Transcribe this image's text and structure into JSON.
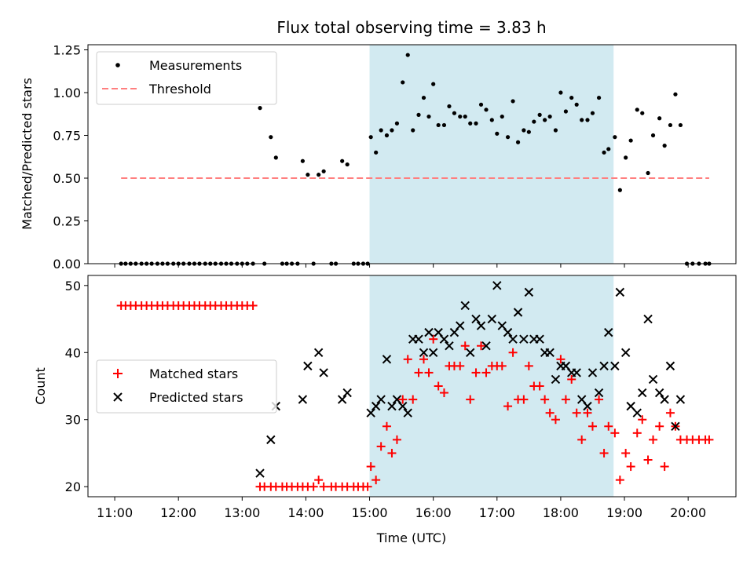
{
  "chart_data": {
    "type": "scatter",
    "title": "Flux total observing time = 3.83 h",
    "x_tick_labels": [
      "11:00",
      "12:00",
      "13:00",
      "14:00",
      "15:00",
      "16:00",
      "17:00",
      "18:00",
      "19:00",
      "20:00"
    ],
    "x_ticks_hours": [
      11,
      12,
      13,
      14,
      15,
      16,
      17,
      18,
      19,
      20
    ],
    "xlim_hours": [
      10.58,
      20.75
    ],
    "xlabel": "Time (UTC)",
    "shaded_region_hours": [
      15.0,
      18.83
    ],
    "shade_color": "#add8e6",
    "top": {
      "ylabel": "Matched/Predicted stars",
      "ylim": [
        0,
        1.28
      ],
      "y_ticks": [
        0.0,
        0.25,
        0.5,
        0.75,
        1.0,
        1.25
      ],
      "y_tick_labels": [
        "0.00",
        "0.25",
        "0.50",
        "0.75",
        "1.00",
        "1.25"
      ],
      "legend": [
        "Measurements",
        "Threshold"
      ],
      "threshold": {
        "value": 0.5,
        "x_start": 11.1,
        "x_end": 20.33,
        "color": "#ff7f7f"
      },
      "measurements": [
        [
          11.1,
          0
        ],
        [
          11.17,
          0
        ],
        [
          11.25,
          0
        ],
        [
          11.33,
          0
        ],
        [
          11.42,
          0
        ],
        [
          11.5,
          0
        ],
        [
          11.58,
          0
        ],
        [
          11.67,
          0
        ],
        [
          11.75,
          0
        ],
        [
          11.83,
          0
        ],
        [
          11.92,
          0
        ],
        [
          12.0,
          0
        ],
        [
          12.08,
          0
        ],
        [
          12.17,
          0
        ],
        [
          12.25,
          0
        ],
        [
          12.33,
          0
        ],
        [
          12.42,
          0
        ],
        [
          12.5,
          0
        ],
        [
          12.58,
          0
        ],
        [
          12.67,
          0
        ],
        [
          12.75,
          0
        ],
        [
          12.83,
          0
        ],
        [
          12.92,
          0
        ],
        [
          13.0,
          0
        ],
        [
          13.08,
          0
        ],
        [
          13.17,
          0
        ],
        [
          13.28,
          0.91
        ],
        [
          13.35,
          0
        ],
        [
          13.45,
          0.74
        ],
        [
          13.53,
          0.62
        ],
        [
          13.63,
          0
        ],
        [
          13.7,
          0
        ],
        [
          13.78,
          0
        ],
        [
          13.87,
          0
        ],
        [
          13.95,
          0.6
        ],
        [
          14.03,
          0.52
        ],
        [
          14.12,
          0
        ],
        [
          14.2,
          0.52
        ],
        [
          14.28,
          0.54
        ],
        [
          14.4,
          0
        ],
        [
          14.47,
          0
        ],
        [
          14.57,
          0.6
        ],
        [
          14.65,
          0.58
        ],
        [
          14.75,
          0
        ],
        [
          14.82,
          0
        ],
        [
          14.9,
          0
        ],
        [
          14.97,
          0
        ],
        [
          15.02,
          0.74
        ],
        [
          15.1,
          0.65
        ],
        [
          15.18,
          0.78
        ],
        [
          15.27,
          0.75
        ],
        [
          15.35,
          0.78
        ],
        [
          15.43,
          0.82
        ],
        [
          15.52,
          1.06
        ],
        [
          15.6,
          1.22
        ],
        [
          15.68,
          0.78
        ],
        [
          15.77,
          0.87
        ],
        [
          15.85,
          0.97
        ],
        [
          15.93,
          0.86
        ],
        [
          16.0,
          1.05
        ],
        [
          16.08,
          0.81
        ],
        [
          16.17,
          0.81
        ],
        [
          16.25,
          0.92
        ],
        [
          16.33,
          0.88
        ],
        [
          16.42,
          0.86
        ],
        [
          16.5,
          0.86
        ],
        [
          16.58,
          0.82
        ],
        [
          16.67,
          0.82
        ],
        [
          16.75,
          0.93
        ],
        [
          16.83,
          0.9
        ],
        [
          16.92,
          0.84
        ],
        [
          17.0,
          0.76
        ],
        [
          17.08,
          0.86
        ],
        [
          17.17,
          0.74
        ],
        [
          17.25,
          0.95
        ],
        [
          17.33,
          0.71
        ],
        [
          17.42,
          0.78
        ],
        [
          17.5,
          0.77
        ],
        [
          17.58,
          0.83
        ],
        [
          17.67,
          0.87
        ],
        [
          17.75,
          0.84
        ],
        [
          17.83,
          0.86
        ],
        [
          17.92,
          0.78
        ],
        [
          18.0,
          1.0
        ],
        [
          18.08,
          0.89
        ],
        [
          18.17,
          0.97
        ],
        [
          18.25,
          0.93
        ],
        [
          18.33,
          0.84
        ],
        [
          18.42,
          0.84
        ],
        [
          18.5,
          0.88
        ],
        [
          18.6,
          0.97
        ],
        [
          18.68,
          0.65
        ],
        [
          18.75,
          0.67
        ],
        [
          18.85,
          0.74
        ],
        [
          18.93,
          0.43
        ],
        [
          19.02,
          0.62
        ],
        [
          19.1,
          0.72
        ],
        [
          19.2,
          0.9
        ],
        [
          19.28,
          0.88
        ],
        [
          19.37,
          0.53
        ],
        [
          19.45,
          0.75
        ],
        [
          19.55,
          0.85
        ],
        [
          19.63,
          0.69
        ],
        [
          19.72,
          0.81
        ],
        [
          19.8,
          0.99
        ],
        [
          19.88,
          0.81
        ],
        [
          19.98,
          0
        ],
        [
          20.07,
          0
        ],
        [
          20.17,
          0
        ],
        [
          20.27,
          0
        ],
        [
          20.33,
          0
        ]
      ]
    },
    "bottom": {
      "ylabel": "Count",
      "ylim": [
        18.5,
        51.5
      ],
      "y_ticks": [
        20,
        30,
        40,
        50
      ],
      "y_tick_labels": [
        "20",
        "30",
        "40",
        "50"
      ],
      "legend": [
        "Matched stars",
        "Predicted stars"
      ],
      "matched_color": "#ff0000",
      "predicted_color": "#000000",
      "matched": [
        [
          11.1,
          47
        ],
        [
          11.17,
          47
        ],
        [
          11.25,
          47
        ],
        [
          11.33,
          47
        ],
        [
          11.42,
          47
        ],
        [
          11.5,
          47
        ],
        [
          11.58,
          47
        ],
        [
          11.67,
          47
        ],
        [
          11.75,
          47
        ],
        [
          11.83,
          47
        ],
        [
          11.92,
          47
        ],
        [
          12.0,
          47
        ],
        [
          12.08,
          47
        ],
        [
          12.17,
          47
        ],
        [
          12.25,
          47
        ],
        [
          12.33,
          47
        ],
        [
          12.42,
          47
        ],
        [
          12.5,
          47
        ],
        [
          12.58,
          47
        ],
        [
          12.67,
          47
        ],
        [
          12.75,
          47
        ],
        [
          12.83,
          47
        ],
        [
          12.92,
          47
        ],
        [
          13.0,
          47
        ],
        [
          13.08,
          47
        ],
        [
          13.17,
          47
        ],
        [
          13.28,
          20
        ],
        [
          13.35,
          20
        ],
        [
          13.45,
          20
        ],
        [
          13.53,
          20
        ],
        [
          13.63,
          20
        ],
        [
          13.7,
          20
        ],
        [
          13.78,
          20
        ],
        [
          13.87,
          20
        ],
        [
          13.95,
          20
        ],
        [
          14.03,
          20
        ],
        [
          14.12,
          20
        ],
        [
          14.2,
          21
        ],
        [
          14.28,
          20
        ],
        [
          14.4,
          20
        ],
        [
          14.47,
          20
        ],
        [
          14.57,
          20
        ],
        [
          14.65,
          20
        ],
        [
          14.75,
          20
        ],
        [
          14.82,
          20
        ],
        [
          14.9,
          20
        ],
        [
          14.97,
          20
        ],
        [
          15.02,
          23
        ],
        [
          15.1,
          21
        ],
        [
          15.18,
          26
        ],
        [
          15.27,
          29
        ],
        [
          15.35,
          25
        ],
        [
          15.43,
          27
        ],
        [
          15.52,
          33
        ],
        [
          15.6,
          39
        ],
        [
          15.68,
          33
        ],
        [
          15.77,
          37
        ],
        [
          15.85,
          39
        ],
        [
          15.93,
          37
        ],
        [
          16.0,
          42
        ],
        [
          16.08,
          35
        ],
        [
          16.17,
          34
        ],
        [
          16.25,
          38
        ],
        [
          16.33,
          38
        ],
        [
          16.42,
          38
        ],
        [
          16.5,
          41
        ],
        [
          16.58,
          33
        ],
        [
          16.67,
          37
        ],
        [
          16.75,
          41
        ],
        [
          16.83,
          37
        ],
        [
          16.92,
          38
        ],
        [
          17.0,
          38
        ],
        [
          17.08,
          38
        ],
        [
          17.17,
          32
        ],
        [
          17.25,
          40
        ],
        [
          17.33,
          33
        ],
        [
          17.42,
          33
        ],
        [
          17.5,
          38
        ],
        [
          17.58,
          35
        ],
        [
          17.67,
          35
        ],
        [
          17.75,
          33
        ],
        [
          17.83,
          31
        ],
        [
          17.92,
          30
        ],
        [
          18.0,
          39
        ],
        [
          18.08,
          33
        ],
        [
          18.17,
          36
        ],
        [
          18.25,
          31
        ],
        [
          18.33,
          27
        ],
        [
          18.42,
          31
        ],
        [
          18.5,
          29
        ],
        [
          18.6,
          33
        ],
        [
          18.68,
          25
        ],
        [
          18.75,
          29
        ],
        [
          18.85,
          28
        ],
        [
          18.93,
          21
        ],
        [
          19.02,
          25
        ],
        [
          19.1,
          23
        ],
        [
          19.2,
          28
        ],
        [
          19.28,
          30
        ],
        [
          19.37,
          24
        ],
        [
          19.45,
          27
        ],
        [
          19.55,
          29
        ],
        [
          19.63,
          23
        ],
        [
          19.72,
          31
        ],
        [
          19.8,
          29
        ],
        [
          19.88,
          27
        ],
        [
          19.98,
          27
        ],
        [
          20.07,
          27
        ],
        [
          20.17,
          27
        ],
        [
          20.27,
          27
        ],
        [
          20.33,
          27
        ]
      ],
      "predicted": [
        [
          13.28,
          22
        ],
        [
          13.45,
          27
        ],
        [
          13.53,
          32
        ],
        [
          13.95,
          33
        ],
        [
          14.03,
          38
        ],
        [
          14.2,
          40
        ],
        [
          14.28,
          37
        ],
        [
          14.57,
          33
        ],
        [
          14.65,
          34
        ],
        [
          15.02,
          31
        ],
        [
          15.1,
          32
        ],
        [
          15.18,
          33
        ],
        [
          15.27,
          39
        ],
        [
          15.35,
          32
        ],
        [
          15.43,
          33
        ],
        [
          15.52,
          32
        ],
        [
          15.6,
          31
        ],
        [
          15.68,
          42
        ],
        [
          15.77,
          42
        ],
        [
          15.85,
          40
        ],
        [
          15.93,
          43
        ],
        [
          16.0,
          40
        ],
        [
          16.08,
          43
        ],
        [
          16.17,
          42
        ],
        [
          16.25,
          41
        ],
        [
          16.33,
          43
        ],
        [
          16.42,
          44
        ],
        [
          16.5,
          47
        ],
        [
          16.58,
          40
        ],
        [
          16.67,
          45
        ],
        [
          16.75,
          44
        ],
        [
          16.83,
          41
        ],
        [
          16.92,
          45
        ],
        [
          17.0,
          50
        ],
        [
          17.08,
          44
        ],
        [
          17.17,
          43
        ],
        [
          17.25,
          42
        ],
        [
          17.33,
          46
        ],
        [
          17.42,
          42
        ],
        [
          17.5,
          49
        ],
        [
          17.58,
          42
        ],
        [
          17.67,
          42
        ],
        [
          17.75,
          40
        ],
        [
          17.83,
          40
        ],
        [
          17.92,
          36
        ],
        [
          18.0,
          38
        ],
        [
          18.08,
          38
        ],
        [
          18.17,
          37
        ],
        [
          18.25,
          37
        ],
        [
          18.33,
          33
        ],
        [
          18.42,
          32
        ],
        [
          18.5,
          37
        ],
        [
          18.6,
          34
        ],
        [
          18.68,
          38
        ],
        [
          18.75,
          43
        ],
        [
          18.85,
          38
        ],
        [
          18.93,
          49
        ],
        [
          19.02,
          40
        ],
        [
          19.1,
          32
        ],
        [
          19.2,
          31
        ],
        [
          19.28,
          34
        ],
        [
          19.37,
          45
        ],
        [
          19.45,
          36
        ],
        [
          19.55,
          34
        ],
        [
          19.63,
          33
        ],
        [
          19.72,
          38
        ],
        [
          19.8,
          29
        ],
        [
          19.88,
          33
        ]
      ]
    }
  }
}
